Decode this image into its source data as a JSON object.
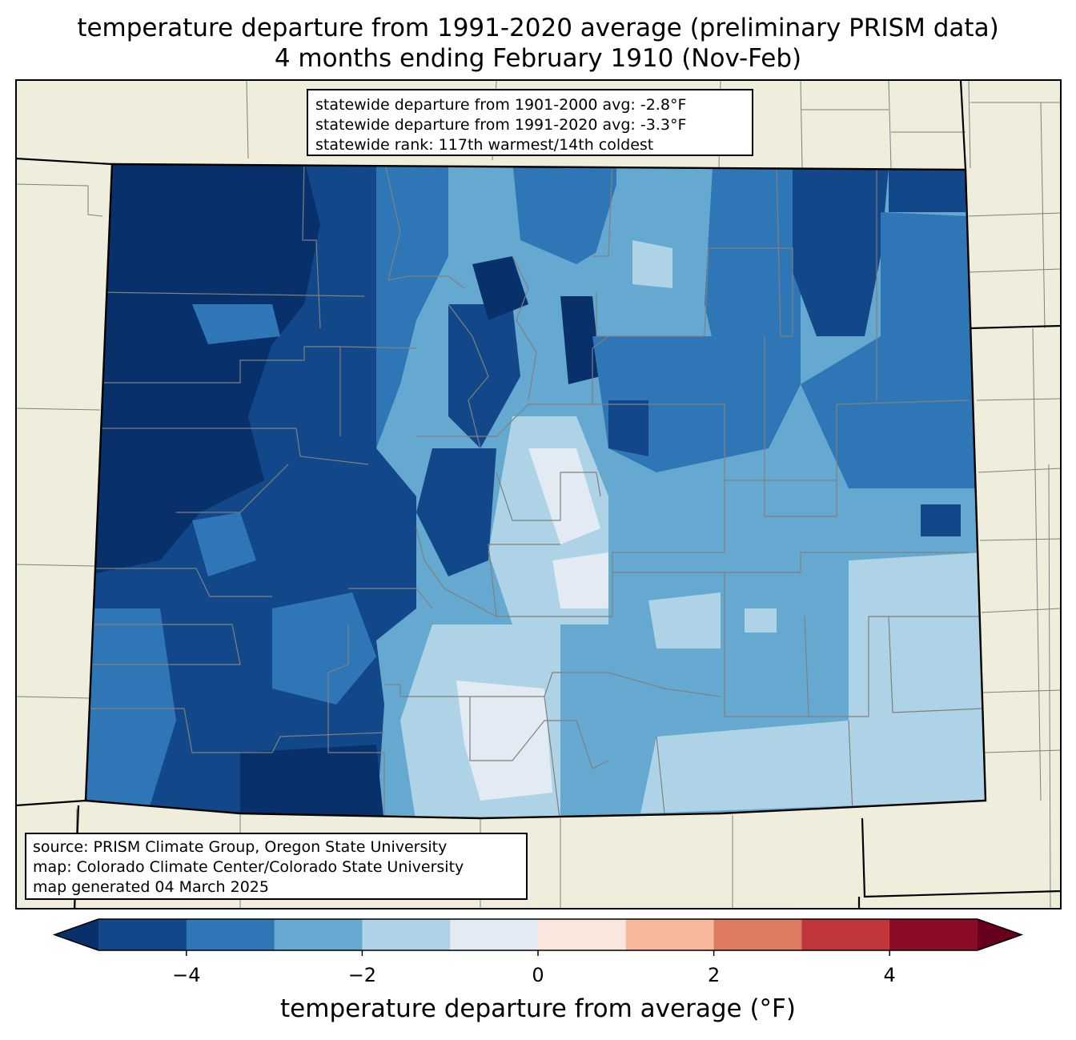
{
  "title": {
    "line1": "temperature departure from 1991-2020 average (preliminary PRISM data)",
    "line2": "4 months ending February 1910 (Nov-Feb)"
  },
  "stats": {
    "line1": "statewide departure from 1901-2000 avg: -2.8°F",
    "line2": "statewide departure from 1991-2020 avg: -3.3°F",
    "line3": "statewide rank: 117th warmest/14th coldest"
  },
  "source": {
    "line1": "source: PRISM Climate Group, Oregon State University",
    "line2": "map: Colorado Climate Center/Colorado State University",
    "line3": "map generated 04 March 2025"
  },
  "colorbar": {
    "label": "temperature departure from average (°F)",
    "ticks": [
      "−4",
      "−2",
      "0",
      "2",
      "4"
    ],
    "tick_values": [
      -4,
      -2,
      0,
      2,
      4
    ],
    "bounds": [
      -5,
      5
    ],
    "step": 1,
    "colors": [
      "#12488a",
      "#2f76b6",
      "#65a8d0",
      "#aed2e6",
      "#e2ebf3",
      "#fae6dc",
      "#f7b79a",
      "#de7a62",
      "#c0363a",
      "#8a0c26"
    ],
    "under_color": "#08306b",
    "over_color": "#67001f"
  },
  "map_colors": {
    "land": "#efeedc",
    "state_border": "#000000",
    "county_lines": "#808080"
  }
}
